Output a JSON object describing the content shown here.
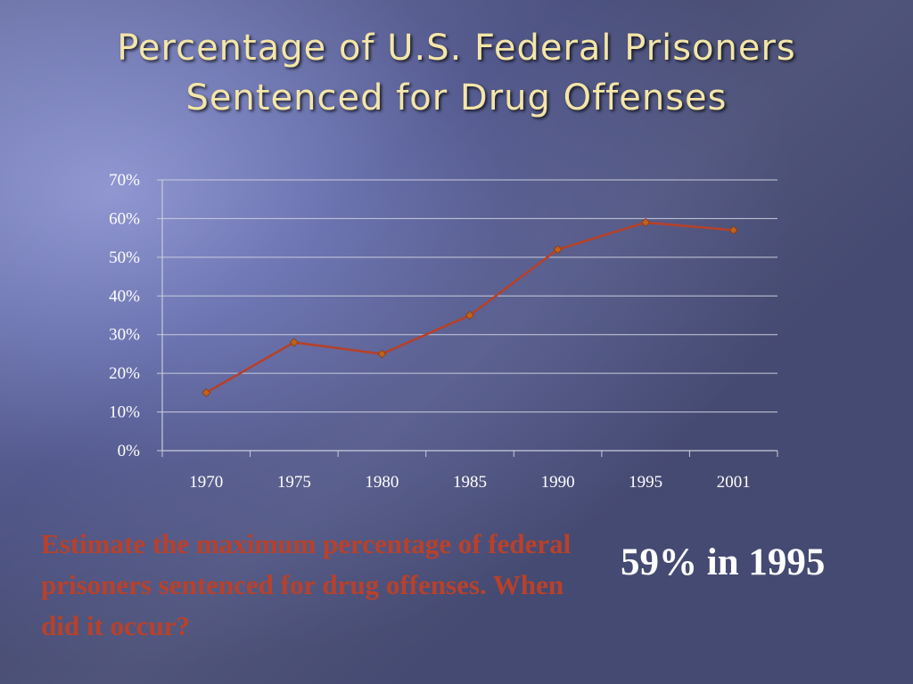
{
  "slide": {
    "title_lines": [
      "Percentage of U.S. Federal Prisoners",
      "Sentenced for Drug Offenses"
    ],
    "question": "Estimate the maximum percentage of federal prisoners sentenced for drug offenses. When did it occur?",
    "answer": "59% in 1995"
  },
  "colors": {
    "title": "#f4e6a8",
    "series_line": "#b5412a",
    "marker": "#c0621a",
    "question_text": "#b9412a",
    "answer_text": "#ffffff"
  },
  "chart_data": {
    "type": "line",
    "categories": [
      "1970",
      "1975",
      "1980",
      "1985",
      "1990",
      "1995",
      "2001"
    ],
    "series": [
      {
        "values": [
          15,
          28,
          25,
          35,
          52,
          59,
          57
        ]
      }
    ],
    "y_ticks": [
      "0%",
      "10%",
      "20%",
      "30%",
      "40%",
      "50%",
      "60%",
      "70%"
    ],
    "ylim": [
      0,
      70
    ],
    "y_step": 10,
    "grid": true,
    "legend": "none",
    "xlabel": "",
    "ylabel": ""
  }
}
